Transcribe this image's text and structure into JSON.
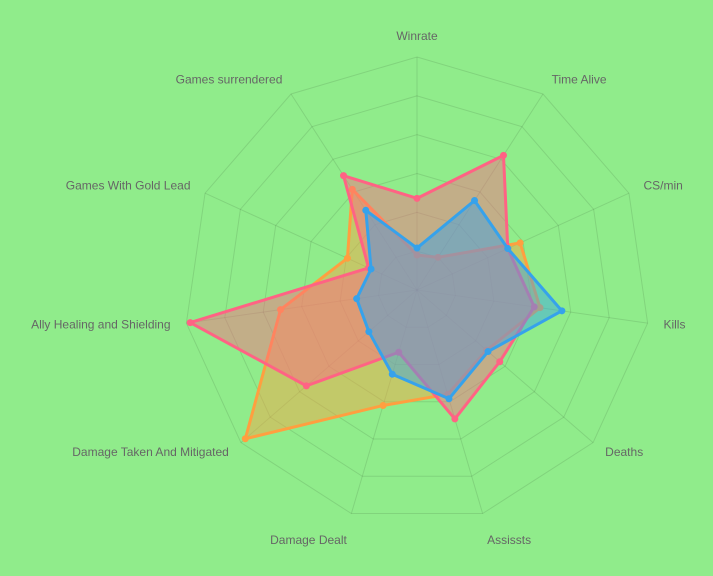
{
  "chart_data": {
    "type": "radar",
    "categories": [
      "Winrate",
      "Time Alive",
      "CS/min",
      "Kills",
      "Deaths",
      "Assissts",
      "Damage Dealt",
      "Damage Taken And Mitigated",
      "Ally Healing and Shielding",
      "Games With Gold Lead",
      "Games surrendered"
    ],
    "rlim": [
      0,
      6
    ],
    "rticks": [
      1,
      2,
      3,
      4,
      5,
      6
    ],
    "grid": true,
    "series": [
      {
        "color": "#ff9f40",
        "values": [
          0.9,
          1.0,
          2.92,
          3.2,
          2.37,
          2.8,
          3.1,
          5.85,
          3.55,
          1.97,
          3.08
        ]
      },
      {
        "color": "#ff6384",
        "values": [
          2.36,
          4.12,
          2.57,
          3.05,
          2.82,
          3.46,
          1.67,
          3.77,
          5.9,
          1.37,
          3.5
        ]
      },
      {
        "color": "#36a2eb",
        "values": [
          1.08,
          2.74,
          2.57,
          3.77,
          2.42,
          2.92,
          2.26,
          1.64,
          1.57,
          1.3,
          2.44
        ]
      }
    ]
  }
}
